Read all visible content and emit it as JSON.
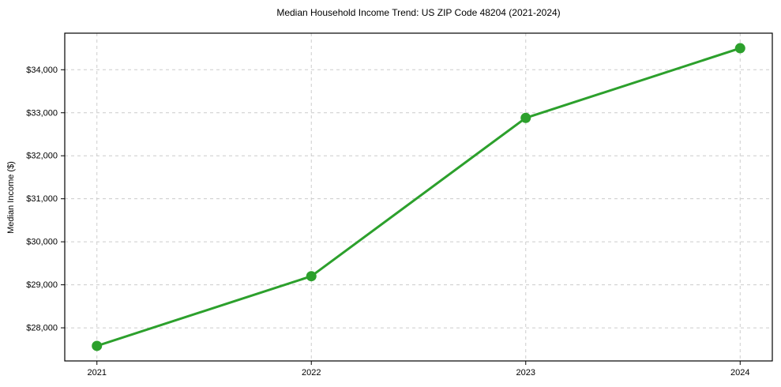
{
  "chart_data": {
    "type": "line",
    "title": "Median Household Income Trend: US ZIP Code 48204 (2021-2024)",
    "xlabel": "",
    "ylabel": "Median Income ($)",
    "categories": [
      "2021",
      "2022",
      "2023",
      "2024"
    ],
    "series": [
      {
        "values": [
          27580,
          29200,
          32880,
          34500
        ],
        "color": "#2ca02c",
        "marker": "circle",
        "marker_radius": 6.5,
        "line_width": 3
      }
    ],
    "yticks": [
      {
        "value": 28000,
        "label": "$28,000"
      },
      {
        "value": 29000,
        "label": "$29,000"
      },
      {
        "value": 30000,
        "label": "$30,000"
      },
      {
        "value": 31000,
        "label": "$31,000"
      },
      {
        "value": 32000,
        "label": "$32,000"
      },
      {
        "value": 33000,
        "label": "$33,000"
      },
      {
        "value": 34000,
        "label": "$34,000"
      }
    ],
    "ylim": [
      27230,
      34850
    ],
    "xlim": [
      -0.15,
      3.15
    ],
    "grid": true,
    "grid_style": "dashed",
    "grid_color": "#cccccc",
    "legend": false,
    "background": "#ffffff"
  }
}
